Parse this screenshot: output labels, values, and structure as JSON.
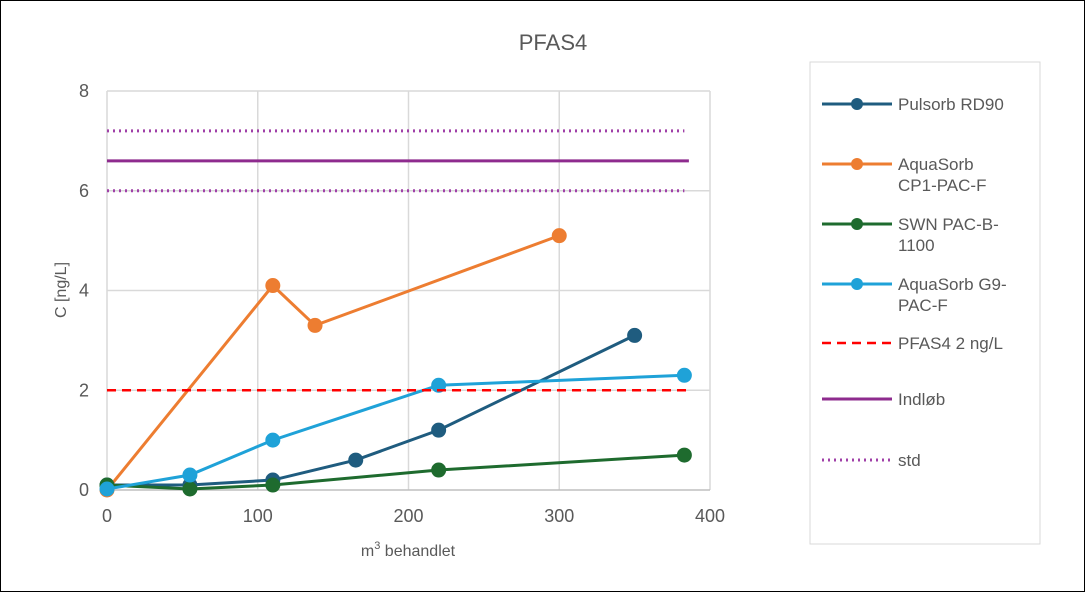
{
  "chart_data": {
    "type": "line",
    "title": "PFAS4",
    "xlabel": "m³ behandlet",
    "xlabel_base": "m",
    "xlabel_sup": "3",
    "xlabel_rest": " behandlet",
    "ylabel": "C [ng/L]",
    "xlim": [
      0,
      400
    ],
    "ylim": [
      0,
      8
    ],
    "xticks": [
      0,
      100,
      200,
      300,
      400
    ],
    "yticks": [
      0,
      2,
      4,
      6,
      8
    ],
    "grid": true,
    "legend_position": "right",
    "series": [
      {
        "name": "Pulsorb RD90",
        "name_lines": [
          "Pulsorb RD90"
        ],
        "color": "#1F5C7F",
        "style": "solid-marker",
        "points": [
          [
            0,
            0.1
          ],
          [
            55,
            0.1
          ],
          [
            110,
            0.2
          ],
          [
            165,
            0.6
          ],
          [
            220,
            1.2
          ],
          [
            350,
            3.1
          ]
        ]
      },
      {
        "name": "AquaSorb CP1-PAC-F",
        "name_lines": [
          "AquaSorb",
          "CP1-PAC-F"
        ],
        "color": "#ED7D31",
        "style": "solid-marker",
        "points": [
          [
            0,
            0.0
          ],
          [
            110,
            4.1
          ],
          [
            138,
            3.3
          ],
          [
            300,
            5.1
          ]
        ]
      },
      {
        "name": "SWN PAC-B-1100",
        "name_lines": [
          "SWN PAC-B-",
          "1100"
        ],
        "color": "#1E6B2E",
        "style": "solid-marker",
        "points": [
          [
            0,
            0.1
          ],
          [
            55,
            0.02
          ],
          [
            110,
            0.1
          ],
          [
            220,
            0.4
          ],
          [
            383,
            0.7
          ]
        ]
      },
      {
        "name": "AquaSorb G9-PAC-F",
        "name_lines": [
          "AquaSorb G9-",
          "PAC-F"
        ],
        "color": "#1FA2D8",
        "style": "solid-marker",
        "points": [
          [
            0,
            0.02
          ],
          [
            55,
            0.3
          ],
          [
            110,
            1.0
          ],
          [
            220,
            2.1
          ],
          [
            383,
            2.3
          ]
        ]
      },
      {
        "name": "PFAS4 2 ng/L",
        "name_lines": [
          "PFAS4 2 ng/L"
        ],
        "color": "#FF0000",
        "style": "dashed",
        "points": [
          [
            0,
            2
          ],
          [
            386,
            2
          ]
        ]
      },
      {
        "name": "Indløb",
        "name_lines": [
          "Indløb"
        ],
        "color": "#8E2B8E",
        "style": "solid",
        "points": [
          [
            0,
            6.6
          ],
          [
            386,
            6.6
          ]
        ]
      },
      {
        "name": "std",
        "name_lines": [
          "std"
        ],
        "color": "#A040A8",
        "style": "dotted",
        "lines": [
          [
            [
              0,
              7.2
            ],
            [
              383,
              7.2
            ]
          ],
          [
            [
              0,
              6.0
            ],
            [
              383,
              6.0
            ]
          ]
        ]
      }
    ]
  }
}
